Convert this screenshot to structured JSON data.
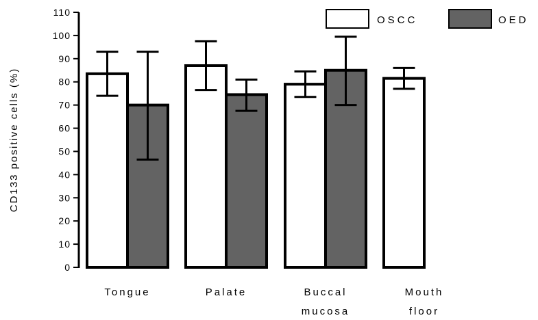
{
  "chart_data": {
    "type": "bar",
    "ylabel": "CD133 positive cells (%)",
    "xlabel": "",
    "ylim": [
      0,
      110
    ],
    "yticks": [
      0,
      10,
      20,
      30,
      40,
      50,
      60,
      70,
      80,
      90,
      100,
      110
    ],
    "categories": [
      [
        "Tongue"
      ],
      [
        "Palate"
      ],
      [
        "Buccal",
        "mucosa"
      ],
      [
        "Mouth",
        "floor"
      ]
    ],
    "series": [
      {
        "name": "OSCC",
        "color": "#ffffff",
        "values": [
          83.5,
          87.0,
          79.0,
          81.5
        ],
        "error_low": [
          74.0,
          76.5,
          73.5,
          77.0
        ],
        "error_high": [
          93.0,
          97.5,
          84.5,
          86.0
        ]
      },
      {
        "name": "OED",
        "color": "#636363",
        "values": [
          70.0,
          74.5,
          85.0,
          null
        ],
        "error_low": [
          46.5,
          67.5,
          70.0,
          null
        ],
        "error_high": [
          93.0,
          81.0,
          99.5,
          null
        ]
      }
    ],
    "legend": "top-right",
    "grid": false
  }
}
